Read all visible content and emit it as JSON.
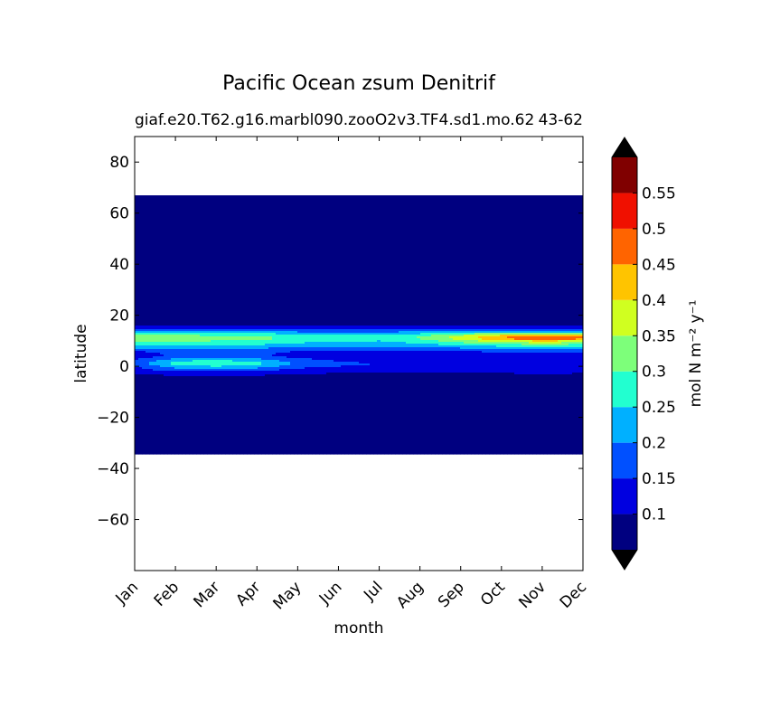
{
  "chart_data": {
    "type": "heatmap",
    "title": "Pacific Ocean zsum Denitrif",
    "subtitle_left": "giaf.e20.T62.g16.marbl090.zooO2v3.TF4.sd1.mo.62",
    "subtitle_right": "43-62",
    "xlabel": "month",
    "ylabel": "latitude",
    "x_categories": [
      "Jan",
      "Feb",
      "Mar",
      "Apr",
      "May",
      "Jun",
      "Jul",
      "Aug",
      "Sep",
      "Oct",
      "Nov",
      "Dec"
    ],
    "yticks": [
      "80",
      "60",
      "40",
      "20",
      "0",
      "−20",
      "−40",
      "−60"
    ],
    "ylim": [
      -80,
      90
    ],
    "data_lat_range": [
      -34,
      67
    ],
    "colorbar": {
      "label": "mol N m⁻² y⁻¹",
      "ticks": [
        "0.1",
        "0.15",
        "0.2",
        "0.25",
        "0.3",
        "0.35",
        "0.4",
        "0.45",
        "0.5",
        "0.55"
      ],
      "levels": [
        0.05,
        0.1,
        0.15,
        0.2,
        0.25,
        0.3,
        0.35,
        0.4,
        0.45,
        0.5,
        0.55,
        0.6
      ],
      "colors": [
        "#000080",
        "#0000e0",
        "#0050ff",
        "#00b0ff",
        "#22ffd0",
        "#7dff7a",
        "#d0ff20",
        "#ffc400",
        "#ff6400",
        "#f01000",
        "#800000"
      ],
      "under_color": "#000000",
      "over_color": "#000000"
    },
    "values": {
      "lat": [
        -34,
        -10,
        -4,
        -2,
        0,
        1,
        2,
        4,
        6,
        8,
        10,
        11,
        12,
        13,
        14,
        16,
        18,
        20,
        30,
        67
      ],
      "months": [
        [
          0.06,
          0.07,
          0.08,
          0.12,
          0.15,
          0.17,
          0.16,
          0.12,
          0.15,
          0.24,
          0.31,
          0.33,
          0.31,
          0.26,
          0.18,
          0.1,
          0.07,
          0.06,
          0.06,
          0.06
        ],
        [
          0.06,
          0.07,
          0.09,
          0.15,
          0.23,
          0.27,
          0.25,
          0.16,
          0.16,
          0.25,
          0.31,
          0.33,
          0.31,
          0.26,
          0.18,
          0.1,
          0.07,
          0.06,
          0.06,
          0.06
        ],
        [
          0.06,
          0.07,
          0.09,
          0.15,
          0.25,
          0.31,
          0.27,
          0.17,
          0.16,
          0.25,
          0.3,
          0.32,
          0.3,
          0.26,
          0.18,
          0.1,
          0.07,
          0.06,
          0.06,
          0.06
        ],
        [
          0.06,
          0.07,
          0.09,
          0.14,
          0.23,
          0.27,
          0.24,
          0.16,
          0.16,
          0.24,
          0.29,
          0.32,
          0.29,
          0.25,
          0.18,
          0.1,
          0.07,
          0.06,
          0.06,
          0.06
        ],
        [
          0.06,
          0.07,
          0.08,
          0.12,
          0.17,
          0.19,
          0.18,
          0.13,
          0.15,
          0.22,
          0.27,
          0.29,
          0.27,
          0.23,
          0.17,
          0.1,
          0.07,
          0.06,
          0.06,
          0.06
        ],
        [
          0.06,
          0.07,
          0.08,
          0.11,
          0.15,
          0.16,
          0.15,
          0.12,
          0.15,
          0.22,
          0.26,
          0.28,
          0.26,
          0.22,
          0.17,
          0.1,
          0.07,
          0.06,
          0.06,
          0.06
        ],
        [
          0.06,
          0.07,
          0.08,
          0.11,
          0.14,
          0.15,
          0.14,
          0.12,
          0.15,
          0.21,
          0.25,
          0.27,
          0.26,
          0.22,
          0.17,
          0.1,
          0.07,
          0.06,
          0.06,
          0.06
        ],
        [
          0.06,
          0.07,
          0.08,
          0.11,
          0.14,
          0.15,
          0.14,
          0.12,
          0.15,
          0.22,
          0.28,
          0.31,
          0.29,
          0.24,
          0.17,
          0.1,
          0.07,
          0.06,
          0.06,
          0.06
        ],
        [
          0.06,
          0.07,
          0.08,
          0.11,
          0.14,
          0.15,
          0.14,
          0.12,
          0.15,
          0.24,
          0.33,
          0.38,
          0.35,
          0.27,
          0.18,
          0.1,
          0.07,
          0.06,
          0.06,
          0.06
        ],
        [
          0.06,
          0.07,
          0.08,
          0.11,
          0.14,
          0.15,
          0.14,
          0.12,
          0.16,
          0.26,
          0.38,
          0.46,
          0.41,
          0.3,
          0.19,
          0.1,
          0.07,
          0.06,
          0.06,
          0.06
        ],
        [
          0.06,
          0.07,
          0.08,
          0.12,
          0.14,
          0.15,
          0.14,
          0.12,
          0.16,
          0.27,
          0.41,
          0.52,
          0.45,
          0.31,
          0.19,
          0.1,
          0.07,
          0.06,
          0.06,
          0.06
        ],
        [
          0.06,
          0.07,
          0.08,
          0.11,
          0.14,
          0.15,
          0.14,
          0.12,
          0.16,
          0.26,
          0.39,
          0.47,
          0.42,
          0.3,
          0.19,
          0.1,
          0.07,
          0.06,
          0.06,
          0.06
        ]
      ]
    }
  }
}
